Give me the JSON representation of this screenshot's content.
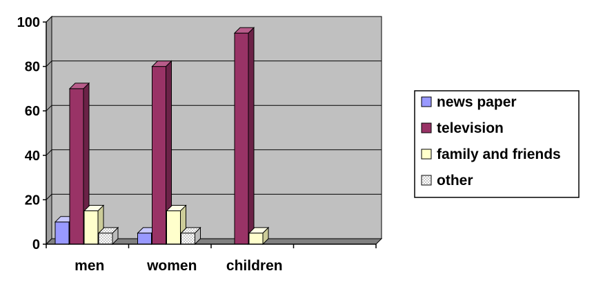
{
  "chart_data": {
    "type": "bar",
    "categories": [
      "men",
      "women",
      "children",
      ""
    ],
    "series": [
      {
        "name": "news paper",
        "values": [
          10,
          5,
          0,
          0
        ],
        "color": "#9999ff",
        "side": "#6666cc",
        "top": "#c8c8ff",
        "pattern": ""
      },
      {
        "name": "television",
        "values": [
          70,
          80,
          95,
          0
        ],
        "color": "#993366",
        "side": "#6b2247",
        "top": "#b85c8a",
        "pattern": ""
      },
      {
        "name": "family and friends",
        "values": [
          15,
          15,
          5,
          0
        ],
        "color": "#ffffcc",
        "side": "#cccc99",
        "top": "#ffffe6",
        "pattern": ""
      },
      {
        "name": "other",
        "values": [
          5,
          5,
          0,
          0
        ],
        "color": "#ffffff",
        "side": "#bbbbbb",
        "top": "#eeeeee",
        "pattern": "dots"
      }
    ],
    "ylim": [
      0,
      100
    ],
    "yticks": [
      0,
      20,
      40,
      60,
      80,
      100
    ],
    "grid": true,
    "legend_position": "right",
    "plot_color": "#c0c0c0",
    "wall_color": "#a0a0a0"
  }
}
